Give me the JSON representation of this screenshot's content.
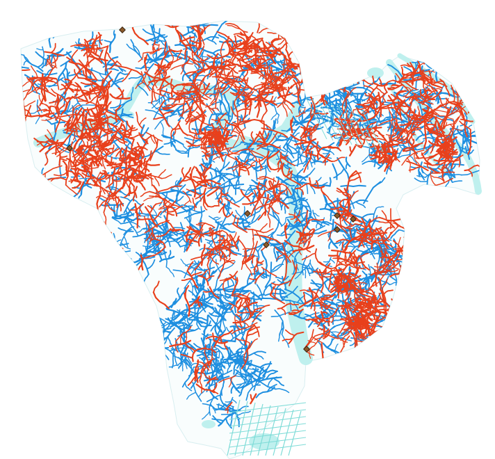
{
  "map": {
    "colors": {
      "background": "#ffffff",
      "water_fill": "#bff0ee",
      "water_edge": "#7fdcd8",
      "blue_network": "#1e8fe0",
      "red_network": "#e8401c",
      "marker_fill": "#8b5a2b",
      "marker_stroke": "#3a2410"
    },
    "marker_count": 8
  }
}
